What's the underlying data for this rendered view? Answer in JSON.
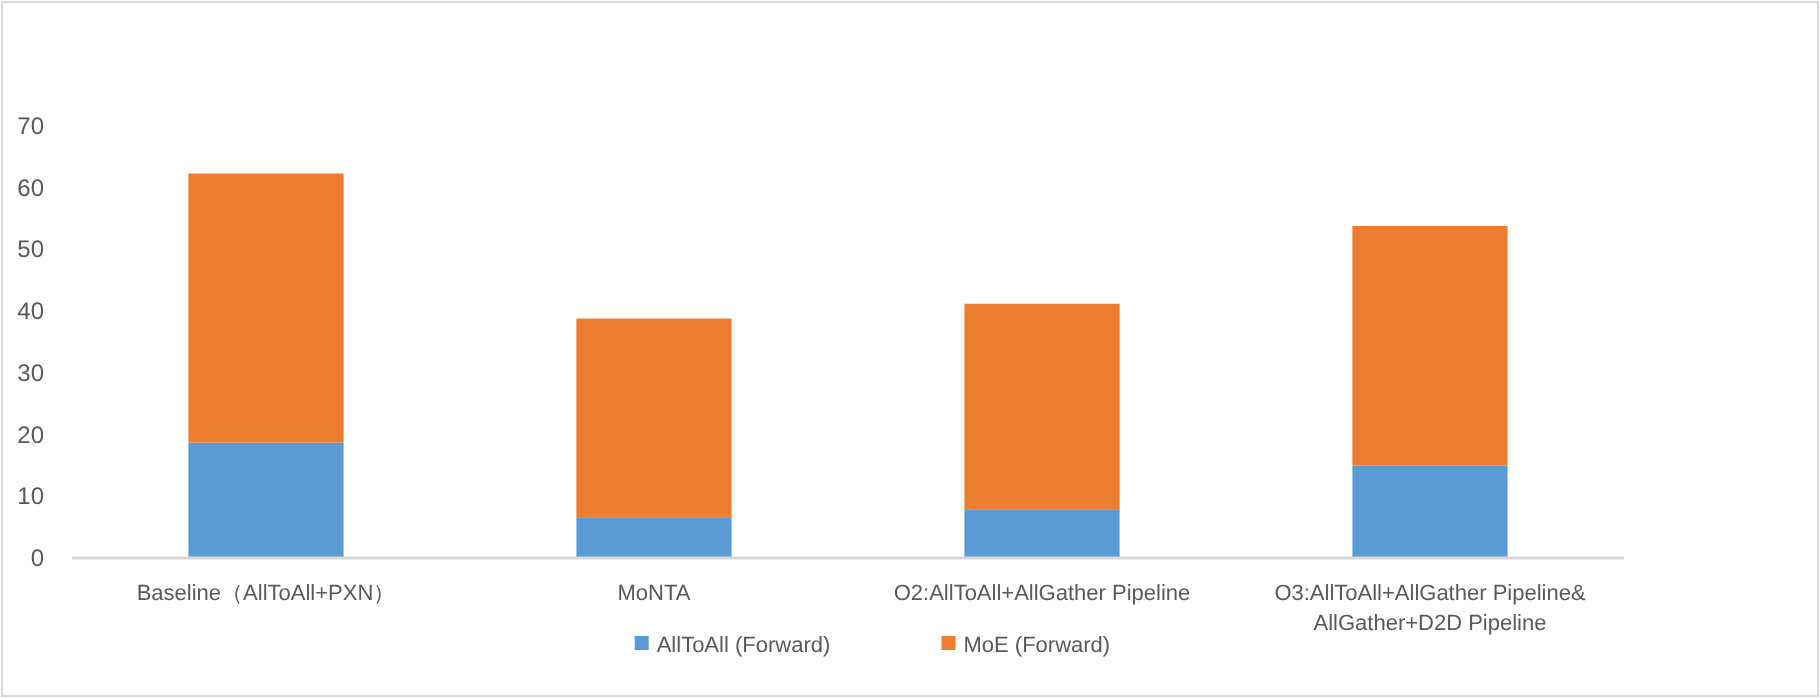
{
  "chart_data": {
    "type": "bar",
    "stacked": true,
    "categories": [
      "Baseline（AllToAll+PXN）",
      "MoNTA",
      "O2:AllToAll+AllGather Pipeline",
      "O3:AllToAll+AllGather Pipeline&\nAllGather+D2D Pipeline"
    ],
    "series": [
      {
        "name": "AllToAll (Forward)",
        "color": "#5b9bd5",
        "values": [
          18.7,
          6.5,
          7.8,
          15.0
        ]
      },
      {
        "name": "MoE (Forward)",
        "color": "#ed7d31",
        "values": [
          43.6,
          32.3,
          33.4,
          38.8
        ]
      }
    ],
    "ylim": [
      0,
      70
    ],
    "yticks": [
      0,
      10,
      20,
      30,
      40,
      50,
      60,
      70
    ],
    "grid": false,
    "legend": "bottom"
  }
}
